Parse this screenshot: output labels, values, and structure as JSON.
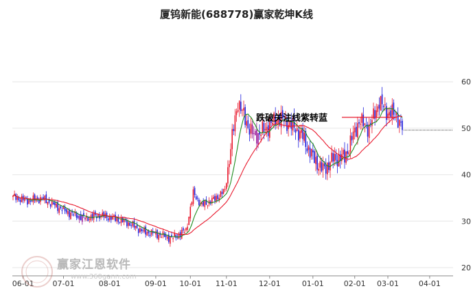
{
  "chart_data": {
    "type": "candlestick",
    "title": "厦钨新能(688778)赢家乾坤K线",
    "x_ticks": [
      "06-01",
      "07-01",
      "08-01",
      "09-01",
      "10-01",
      "11-01",
      "12-01",
      "01-01",
      "02-01",
      "03-01",
      "04-01"
    ],
    "y_ticks": [
      20,
      30,
      40,
      50,
      60
    ],
    "ylim": [
      20,
      62
    ],
    "grid": true,
    "annotation": "跌破关注线紫转蓝",
    "last_close": 49.6,
    "colors": {
      "up": "#e8172b",
      "down": "#1a1adc",
      "purple": "#9a1a9a",
      "ma_fast": "#1e8c1e",
      "ma_slow": "#e8172b",
      "grid": "#e6e6e6"
    },
    "trend": [
      {
        "i": 0,
        "close": 35.2
      },
      {
        "i": 10,
        "close": 34.4
      },
      {
        "i": 20,
        "close": 34.9
      },
      {
        "i": 30,
        "close": 33.2
      },
      {
        "i": 40,
        "close": 31.6
      },
      {
        "i": 50,
        "close": 30.6
      },
      {
        "i": 60,
        "close": 31.3
      },
      {
        "i": 70,
        "close": 30.6
      },
      {
        "i": 80,
        "close": 29.6
      },
      {
        "i": 90,
        "close": 27.8
      },
      {
        "i": 100,
        "close": 27.2
      },
      {
        "i": 110,
        "close": 26.3
      },
      {
        "i": 120,
        "close": 28.0
      },
      {
        "i": 125,
        "close": 36.0
      },
      {
        "i": 131,
        "close": 33.4
      },
      {
        "i": 140,
        "close": 34.8
      },
      {
        "i": 147,
        "close": 36.6
      },
      {
        "i": 152,
        "close": 48.0
      },
      {
        "i": 156,
        "close": 55.8
      },
      {
        "i": 161,
        "close": 51.9
      },
      {
        "i": 167,
        "close": 48.2
      },
      {
        "i": 175,
        "close": 49.8
      },
      {
        "i": 184,
        "close": 52.3
      },
      {
        "i": 192,
        "close": 50.9
      },
      {
        "i": 200,
        "close": 48.7
      },
      {
        "i": 208,
        "close": 43.7
      },
      {
        "i": 215,
        "close": 41.0
      },
      {
        "i": 222,
        "close": 43.4
      },
      {
        "i": 230,
        "close": 43.8
      },
      {
        "i": 240,
        "close": 51.6
      },
      {
        "i": 247,
        "close": 50.0
      },
      {
        "i": 254,
        "close": 55.7
      },
      {
        "i": 260,
        "close": 53.3
      },
      {
        "i": 266,
        "close": 52.9
      },
      {
        "i": 270,
        "close": 49.6
      }
    ]
  },
  "watermark": {
    "brand": "赢家江恩软件",
    "url": "www.360gann.com"
  }
}
